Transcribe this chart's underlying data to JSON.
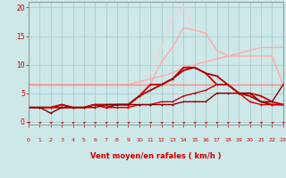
{
  "background_color": "#cce8e8",
  "grid_color": "#aacccc",
  "x_min": 0,
  "x_max": 23,
  "y_min": -0.5,
  "y_max": 21,
  "y_ticks": [
    0,
    5,
    10,
    15,
    20
  ],
  "xlabel": "Vent moyen/en rafales ( km/h )",
  "xlabel_color": "#cc0000",
  "tick_color": "#cc0000",
  "series": [
    {
      "x": [
        0,
        1,
        2,
        3,
        4,
        5,
        6,
        7,
        8,
        9,
        10,
        11,
        12,
        13,
        14,
        15,
        16,
        17,
        18,
        19,
        20,
        21,
        22,
        23
      ],
      "y": [
        6.5,
        6.5,
        6.5,
        6.5,
        6.5,
        6.5,
        6.5,
        6.5,
        6.5,
        6.5,
        7.0,
        7.5,
        8.0,
        8.5,
        9.5,
        10.0,
        10.5,
        11.0,
        11.5,
        12.0,
        12.5,
        13.0,
        13.0,
        13.0
      ],
      "color": "#ffaaaa",
      "lw": 1.0,
      "marker": "+"
    },
    {
      "x": [
        2,
        3,
        4,
        5,
        6,
        7,
        8,
        9,
        10,
        11,
        12,
        13,
        14,
        15,
        16,
        17,
        18,
        19,
        20,
        21,
        22,
        23
      ],
      "y": [
        2.5,
        2.5,
        2.5,
        2.5,
        2.5,
        2.5,
        2.5,
        2.5,
        4.5,
        8.5,
        13.0,
        18.5,
        20.0,
        16.0,
        15.5,
        12.5,
        11.5,
        11.5,
        11.5,
        11.5,
        11.5,
        6.5
      ],
      "color": "#ffcccc",
      "lw": 1.0,
      "marker": "+",
      "linestyle": "--"
    },
    {
      "x": [
        2,
        3,
        4,
        5,
        6,
        7,
        8,
        9,
        10,
        11,
        12,
        13,
        14,
        15,
        16,
        17,
        18,
        19,
        20,
        21,
        22,
        23
      ],
      "y": [
        2.5,
        2.5,
        2.5,
        2.5,
        2.5,
        2.5,
        2.5,
        2.5,
        4.5,
        6.5,
        10.5,
        13.0,
        16.5,
        16.0,
        15.5,
        12.5,
        11.5,
        11.5,
        11.5,
        11.5,
        11.5,
        6.5
      ],
      "color": "#ffaaaa",
      "lw": 1.0,
      "marker": "+",
      "linestyle": "-"
    },
    {
      "x": [
        0,
        1,
        2,
        3,
        4,
        5,
        6,
        7,
        8,
        9,
        10,
        11,
        12,
        13,
        14,
        15,
        16,
        17,
        18,
        19,
        20,
        21,
        22,
        23
      ],
      "y": [
        6.5,
        6.5,
        6.5,
        6.5,
        6.5,
        6.5,
        6.5,
        6.5,
        6.5,
        6.5,
        6.5,
        6.5,
        6.5,
        6.5,
        6.5,
        6.5,
        6.5,
        6.5,
        6.5,
        6.5,
        6.5,
        6.5,
        6.5,
        6.5
      ],
      "color": "#ff8888",
      "lw": 1.0,
      "marker": "+"
    },
    {
      "x": [
        0,
        1,
        2,
        3,
        4,
        5,
        6,
        7,
        8,
        9,
        10,
        11,
        12,
        13,
        14,
        15,
        16,
        17,
        18,
        19,
        20,
        21,
        22,
        23
      ],
      "y": [
        2.5,
        2.5,
        2.5,
        2.5,
        2.5,
        2.5,
        3.0,
        3.0,
        3.0,
        3.0,
        4.5,
        6.5,
        6.5,
        7.5,
        9.5,
        9.5,
        8.5,
        6.5,
        6.5,
        5.0,
        5.0,
        4.5,
        3.5,
        3.0
      ],
      "color": "#cc0000",
      "lw": 1.3,
      "marker": "+"
    },
    {
      "x": [
        0,
        1,
        2,
        3,
        4,
        5,
        6,
        7,
        8,
        9,
        10,
        11,
        12,
        13,
        14,
        15,
        16,
        17,
        18,
        19,
        20,
        21,
        22,
        23
      ],
      "y": [
        2.5,
        2.5,
        2.5,
        3.0,
        2.5,
        2.5,
        3.0,
        2.5,
        3.0,
        3.0,
        4.5,
        5.5,
        6.5,
        7.5,
        9.0,
        9.5,
        8.5,
        8.0,
        6.5,
        5.0,
        4.5,
        3.5,
        3.0,
        3.0
      ],
      "color": "#aa0000",
      "lw": 1.3,
      "marker": "+"
    },
    {
      "x": [
        0,
        1,
        2,
        3,
        4,
        5,
        6,
        7,
        8,
        9,
        10,
        11,
        12,
        13,
        14,
        15,
        16,
        17,
        18,
        19,
        20,
        21,
        22,
        23
      ],
      "y": [
        2.5,
        2.5,
        2.5,
        3.0,
        2.5,
        2.5,
        3.0,
        2.5,
        2.5,
        2.5,
        3.0,
        3.0,
        3.5,
        3.5,
        4.5,
        5.0,
        5.5,
        6.5,
        6.5,
        5.0,
        3.5,
        3.0,
        3.0,
        3.0
      ],
      "color": "#cc0000",
      "lw": 1.0,
      "marker": "+"
    },
    {
      "x": [
        0,
        1,
        2,
        3,
        4,
        5,
        6,
        7,
        8,
        9,
        10,
        11,
        12,
        13,
        14,
        15,
        16,
        17,
        18,
        19,
        20,
        21,
        22,
        23
      ],
      "y": [
        2.5,
        2.5,
        1.5,
        2.5,
        2.5,
        2.5,
        2.5,
        3.0,
        3.0,
        3.0,
        3.0,
        3.0,
        3.0,
        3.0,
        3.5,
        3.5,
        3.5,
        5.0,
        5.0,
        5.0,
        5.0,
        3.5,
        3.5,
        6.5
      ],
      "color": "#880000",
      "lw": 1.0,
      "marker": "+"
    }
  ]
}
